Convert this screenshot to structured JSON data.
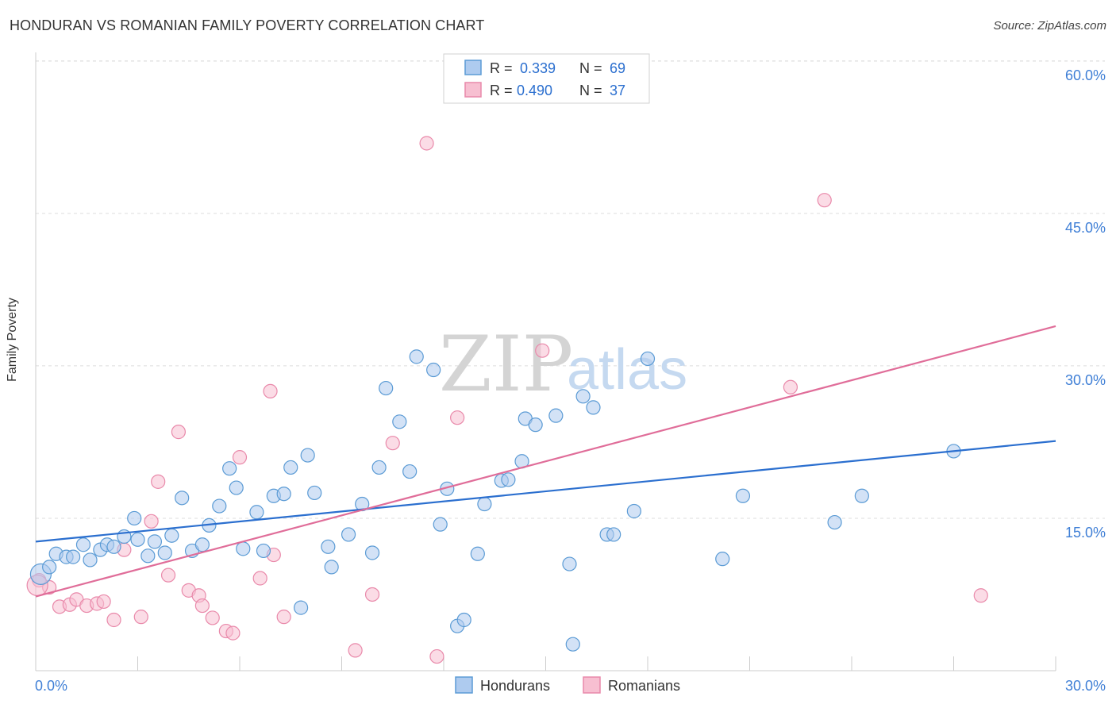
{
  "title": "HONDURAN VS ROMANIAN FAMILY POVERTY CORRELATION CHART",
  "source": "Source: ZipAtlas.com",
  "colors": {
    "blue": "#5b9bd5",
    "blue_fill": "#aecbef",
    "blue_line": "#2b6fcf",
    "pink": "#e989aa",
    "pink_fill": "#f7bfd1",
    "pink_line": "#e06d99",
    "axis_text": "#3f7fd6",
    "grid": "#dddddd"
  },
  "watermark": {
    "part1": "ZIP",
    "part2": "atlas"
  },
  "legend_top": [
    {
      "r_label": "R =",
      "r_value": "0.339",
      "n_label": "N =",
      "n_value": "69"
    },
    {
      "r_label": "R =",
      "r_value": "0.490",
      "n_label": "N =",
      "n_value": "37"
    }
  ],
  "chart_data": {
    "type": "scatter",
    "title": "HONDURAN VS ROMANIAN FAMILY POVERTY CORRELATION CHART",
    "xlabel": "",
    "ylabel": "Family Poverty",
    "xlim": [
      0,
      30
    ],
    "ylim": [
      0,
      60
    ],
    "x_tick_labels": [
      "0.0%",
      "30.0%"
    ],
    "y_ticks": [
      15,
      30,
      45,
      60
    ],
    "y_tick_labels": [
      "15.0%",
      "30.0%",
      "45.0%",
      "60.0%"
    ],
    "grid": true,
    "legend_position": "bottom-center",
    "series": [
      {
        "name": "Hondurans",
        "r": 0.339,
        "n": 69,
        "trend": {
          "x": [
            0,
            30
          ],
          "y": [
            12.7,
            22.6
          ]
        },
        "points": [
          [
            0.15,
            9.5
          ],
          [
            0.4,
            10.2
          ],
          [
            0.6,
            11.5
          ],
          [
            0.9,
            11.2
          ],
          [
            1.1,
            11.2
          ],
          [
            1.4,
            12.4
          ],
          [
            1.6,
            10.9
          ],
          [
            1.9,
            11.9
          ],
          [
            2.1,
            12.4
          ],
          [
            2.3,
            12.2
          ],
          [
            2.6,
            13.2
          ],
          [
            2.9,
            15.0
          ],
          [
            3.0,
            12.9
          ],
          [
            3.3,
            11.3
          ],
          [
            3.5,
            12.7
          ],
          [
            3.8,
            11.6
          ],
          [
            4.0,
            13.3
          ],
          [
            4.3,
            17.0
          ],
          [
            4.6,
            11.8
          ],
          [
            4.9,
            12.4
          ],
          [
            5.1,
            14.3
          ],
          [
            5.4,
            16.2
          ],
          [
            5.7,
            19.9
          ],
          [
            5.9,
            18.0
          ],
          [
            6.1,
            12.0
          ],
          [
            6.5,
            15.6
          ],
          [
            6.7,
            11.8
          ],
          [
            7.0,
            17.2
          ],
          [
            7.3,
            17.4
          ],
          [
            7.5,
            20.0
          ],
          [
            7.8,
            6.2
          ],
          [
            8.0,
            21.2
          ],
          [
            8.2,
            17.5
          ],
          [
            8.6,
            12.2
          ],
          [
            8.7,
            10.2
          ],
          [
            9.2,
            13.4
          ],
          [
            9.6,
            16.4
          ],
          [
            9.9,
            11.6
          ],
          [
            10.1,
            20.0
          ],
          [
            10.3,
            27.8
          ],
          [
            10.7,
            24.5
          ],
          [
            11.0,
            19.6
          ],
          [
            11.2,
            30.9
          ],
          [
            11.7,
            29.6
          ],
          [
            11.9,
            14.4
          ],
          [
            12.1,
            17.9
          ],
          [
            12.4,
            4.4
          ],
          [
            12.6,
            5.0
          ],
          [
            13.0,
            11.5
          ],
          [
            13.2,
            16.4
          ],
          [
            13.7,
            18.7
          ],
          [
            13.9,
            18.8
          ],
          [
            14.3,
            20.6
          ],
          [
            14.4,
            24.8
          ],
          [
            14.7,
            24.2
          ],
          [
            15.3,
            25.1
          ],
          [
            15.7,
            10.5
          ],
          [
            15.8,
            2.6
          ],
          [
            16.1,
            27.0
          ],
          [
            16.4,
            25.9
          ],
          [
            16.8,
            13.4
          ],
          [
            17.0,
            13.4
          ],
          [
            17.6,
            15.7
          ],
          [
            18.0,
            30.7
          ],
          [
            20.2,
            11.0
          ],
          [
            20.8,
            17.2
          ],
          [
            23.5,
            14.6
          ],
          [
            24.3,
            17.2
          ],
          [
            27.0,
            21.6
          ]
        ]
      },
      {
        "name": "Romanians",
        "r": 0.49,
        "n": 37,
        "trend": {
          "x": [
            0,
            30
          ],
          "y": [
            7.3,
            33.9
          ]
        },
        "points": [
          [
            0.1,
            8.9
          ],
          [
            0.4,
            8.2
          ],
          [
            0.7,
            6.3
          ],
          [
            1.0,
            6.5
          ],
          [
            1.2,
            7.0
          ],
          [
            1.5,
            6.4
          ],
          [
            1.8,
            6.6
          ],
          [
            2.0,
            6.8
          ],
          [
            2.3,
            5.0
          ],
          [
            2.6,
            11.9
          ],
          [
            3.1,
            5.3
          ],
          [
            3.4,
            14.7
          ],
          [
            3.6,
            18.6
          ],
          [
            3.9,
            9.4
          ],
          [
            4.2,
            23.5
          ],
          [
            4.5,
            7.9
          ],
          [
            4.8,
            7.4
          ],
          [
            4.9,
            6.4
          ],
          [
            5.2,
            5.2
          ],
          [
            5.6,
            3.9
          ],
          [
            5.8,
            3.7
          ],
          [
            6.0,
            21.0
          ],
          [
            6.6,
            9.1
          ],
          [
            6.9,
            27.5
          ],
          [
            7.0,
            11.4
          ],
          [
            7.3,
            5.3
          ],
          [
            9.4,
            2.0
          ],
          [
            9.9,
            7.5
          ],
          [
            10.5,
            22.4
          ],
          [
            11.5,
            51.9
          ],
          [
            11.8,
            1.4
          ],
          [
            12.4,
            24.9
          ],
          [
            14.9,
            31.5
          ],
          [
            22.2,
            27.9
          ],
          [
            23.2,
            46.3
          ],
          [
            27.8,
            7.4
          ],
          [
            0.05,
            8.4
          ]
        ]
      }
    ]
  },
  "legend_bottom": {
    "items": [
      "Hondurans",
      "Romanians"
    ]
  }
}
